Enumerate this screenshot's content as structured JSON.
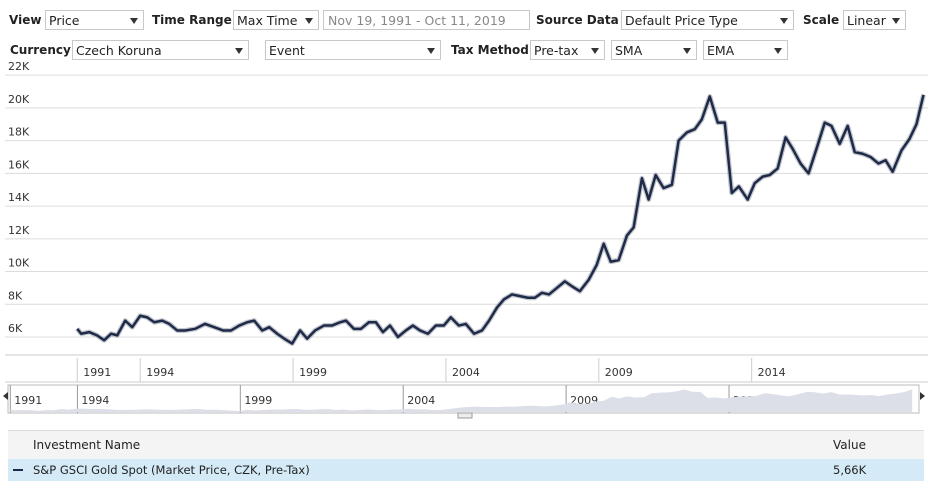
{
  "toolbar": {
    "view_label": "View",
    "view": "Price",
    "time_range_label": "Time Range",
    "time_range": "Max Time",
    "date_range": "Nov 19, 1991 - Oct 11, 2019",
    "source_label": "Source Data",
    "source": "Default Price Type",
    "scale_label": "Scale",
    "scale": "Linear",
    "currency_label": "Currency",
    "currency": "Czech Koruna",
    "event": "Event",
    "tax_label": "Tax Method",
    "tax": "Pre-tax",
    "sma": "SMA",
    "ema": "EMA"
  },
  "chart_data": {
    "type": "line",
    "x": [
      1991.94,
      1992.07,
      1992.33,
      1992.59,
      1992.82,
      1993.05,
      1993.25,
      1993.51,
      1993.74,
      1994.0,
      1994.23,
      1994.46,
      1994.72,
      1994.95,
      1995.21,
      1995.47,
      1995.8,
      1996.12,
      1996.42,
      1996.71,
      1996.97,
      1997.24,
      1997.5,
      1997.73,
      1997.99,
      1998.22,
      1998.48,
      1998.71,
      1998.97,
      1999.23,
      1999.46,
      1999.72,
      2000.01,
      2000.27,
      2000.54,
      2000.73,
      2000.99,
      2001.22,
      2001.48,
      2001.71,
      2001.94,
      2002.17,
      2002.43,
      2002.69,
      2002.92,
      2003.15,
      2003.41,
      2003.67,
      2003.93,
      2004.16,
      2004.42,
      2004.65,
      2004.92,
      2005.18,
      2005.41,
      2005.67,
      2005.9,
      2006.16,
      2006.42,
      2006.68,
      2006.91,
      2007.14,
      2007.37,
      2007.63,
      2007.89,
      2008.12,
      2008.38,
      2008.67,
      2008.93,
      2009.16,
      2009.39,
      2009.65,
      2009.92,
      2010.14,
      2010.41,
      2010.63,
      2010.86,
      2011.12,
      2011.39,
      2011.61,
      2011.88,
      2012.14,
      2012.37,
      2012.63,
      2012.89,
      2013.12,
      2013.35,
      2013.58,
      2013.87,
      2014.1,
      2014.36,
      2014.59,
      2014.85,
      2015.11,
      2015.34,
      2015.6,
      2015.86,
      2016.12,
      2016.39,
      2016.61,
      2016.88,
      2017.14,
      2017.37,
      2017.63,
      2017.89,
      2018.15,
      2018.38,
      2018.61,
      2018.9,
      2019.16,
      2019.39,
      2019.62
    ],
    "series": [
      {
        "name": "S&P GSCI Gold Spot (Market Price, CZK, Pre-Tax)",
        "color": "#1f2a48",
        "values": [
          6500,
          6200,
          6300,
          6100,
          5800,
          6200,
          6100,
          7000,
          6600,
          7300,
          7200,
          6900,
          7000,
          6800,
          6400,
          6400,
          6500,
          6800,
          6600,
          6400,
          6400,
          6700,
          6900,
          7000,
          6400,
          6600,
          6200,
          5900,
          5600,
          6400,
          5900,
          6400,
          6700,
          6700,
          6900,
          7000,
          6500,
          6500,
          6900,
          6900,
          6300,
          6700,
          6000,
          6400,
          6700,
          6400,
          6200,
          6700,
          6700,
          7200,
          6700,
          6800,
          6200,
          6400,
          7000,
          7800,
          8300,
          8600,
          8500,
          8400,
          8400,
          8700,
          8600,
          9000,
          9400,
          9100,
          8800,
          9500,
          10400,
          11700,
          10600,
          10700,
          12200,
          12700,
          15700,
          14400,
          15900,
          15100,
          15300,
          18000,
          18500,
          18700,
          19300,
          20700,
          19100,
          19100,
          14800,
          15200,
          14400,
          15400,
          15800,
          15900,
          16300,
          18200,
          17500,
          16600,
          16000,
          17500,
          19100,
          18900,
          17800,
          18900,
          17300,
          17200,
          17000,
          16600,
          16800,
          16100,
          17400,
          18100,
          19000,
          20800
        ]
      }
    ],
    "xlim": [
      1991.9,
      2019.8
    ],
    "xticks": [
      {
        "value": 1991.94,
        "label": "1991"
      },
      1994,
      1999,
      2004,
      2009,
      2014
    ],
    "ylim": [
      4900,
      22500
    ],
    "yticks": [
      {
        "value": 6000,
        "label": "6K"
      },
      {
        "value": 8000,
        "label": "8K"
      },
      {
        "value": 10000,
        "label": "10K"
      },
      {
        "value": 12000,
        "label": "12K"
      },
      {
        "value": 14000,
        "label": "14K"
      },
      {
        "value": 16000,
        "label": "16K"
      },
      {
        "value": 18000,
        "label": "18K"
      },
      {
        "value": 20000,
        "label": "20K"
      },
      {
        "value": 22000,
        "label": "22K"
      }
    ],
    "grid": true
  },
  "table": {
    "headers": [
      "Investment Name",
      "Value"
    ],
    "rows": [
      {
        "value": "5,66K"
      }
    ]
  }
}
